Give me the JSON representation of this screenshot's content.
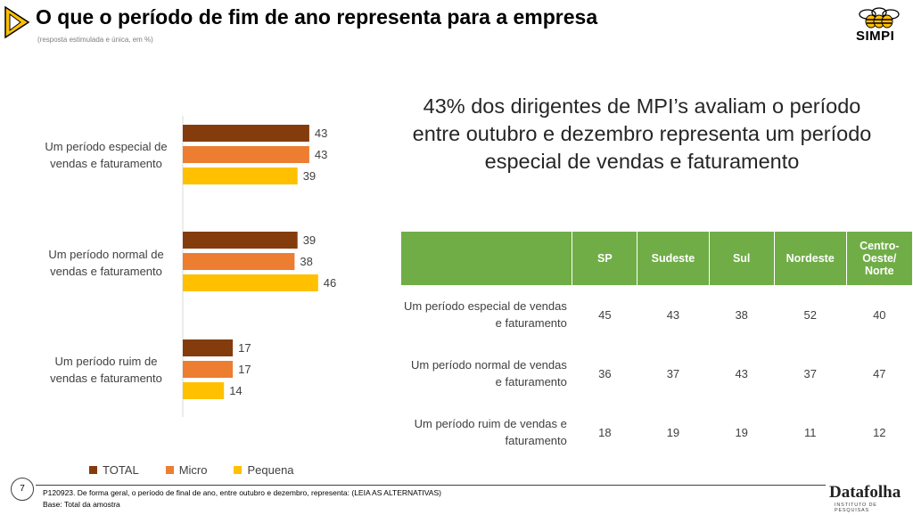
{
  "header": {
    "title": "O que o período de fim de ano representa para a empresa",
    "subtitle": "(resposta estimulada e única, em %)",
    "logo_text": "SIMPI"
  },
  "headline": "43% dos dirigentes de MPI’s avaliam o período entre outubro e dezembro representa um período especial de vendas e faturamento",
  "chart_data": {
    "type": "bar",
    "orientation": "horizontal",
    "categories": [
      [
        "Um período especial de",
        "vendas e faturamento"
      ],
      [
        "Um período normal de",
        "vendas e faturamento"
      ],
      [
        "Um período ruim de",
        "vendas e faturamento"
      ]
    ],
    "series": [
      {
        "name": "TOTAL",
        "values": [
          43,
          39,
          17
        ],
        "color": "#843c0c"
      },
      {
        "name": "Micro",
        "values": [
          43,
          38,
          17
        ],
        "color": "#ed7d31"
      },
      {
        "name": "Pequena",
        "values": [
          39,
          46,
          14
        ],
        "color": "#ffc000"
      }
    ],
    "xlim": [
      0,
      100
    ],
    "legend": "bottom",
    "grid": false
  },
  "table": {
    "columns": [
      "SP",
      "Sudeste",
      "Sul",
      "Nordeste",
      "Centro-\nOeste/\nNorte"
    ],
    "rows": [
      {
        "label": "Um período especial de vendas e faturamento",
        "values": [
          "45",
          "43",
          "38",
          "52",
          "40"
        ]
      },
      {
        "label": "Um período normal de vendas e faturamento",
        "values": [
          "36",
          "37",
          "43",
          "37",
          "47"
        ]
      },
      {
        "label": "Um período ruim de vendas e faturamento",
        "values": [
          "18",
          "19",
          "19",
          "11",
          "12"
        ]
      }
    ],
    "header_color": "#70ad47"
  },
  "footer": {
    "page_number": "7",
    "question": "P120923. De forma geral, o período de final de ano, entre outubro e dezembro, representa: (LEIA AS ALTERNATIVAS)",
    "base": "Base: Total da amostra",
    "brand": "Datafolha",
    "brand_sub": "INSTITUTO DE PESQUISAS"
  },
  "colors": {
    "accent": "#ffc000"
  }
}
